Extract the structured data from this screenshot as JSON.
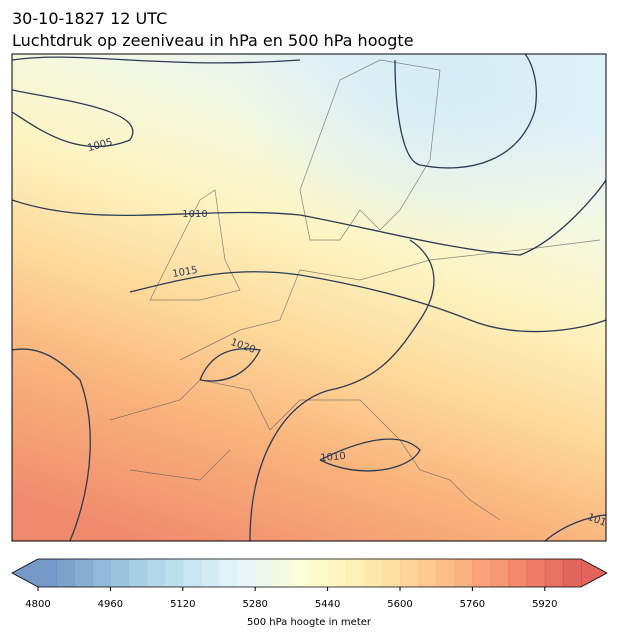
{
  "header": {
    "title_line1": "30-10-1827 12 UTC",
    "title_line2": "Luchtdruk op zeeniveau in hPa en 500 hPa hoogte"
  },
  "map": {
    "contour_labels": [
      "1005",
      "1010",
      "1015",
      "1020",
      "1010",
      "101"
    ]
  },
  "colorbar": {
    "range": [
      4800,
      6000
    ],
    "ticks": [
      4800,
      4960,
      5120,
      5280,
      5440,
      5600,
      5760,
      5920
    ],
    "label": "500 hPa hoogte in meter"
  }
}
